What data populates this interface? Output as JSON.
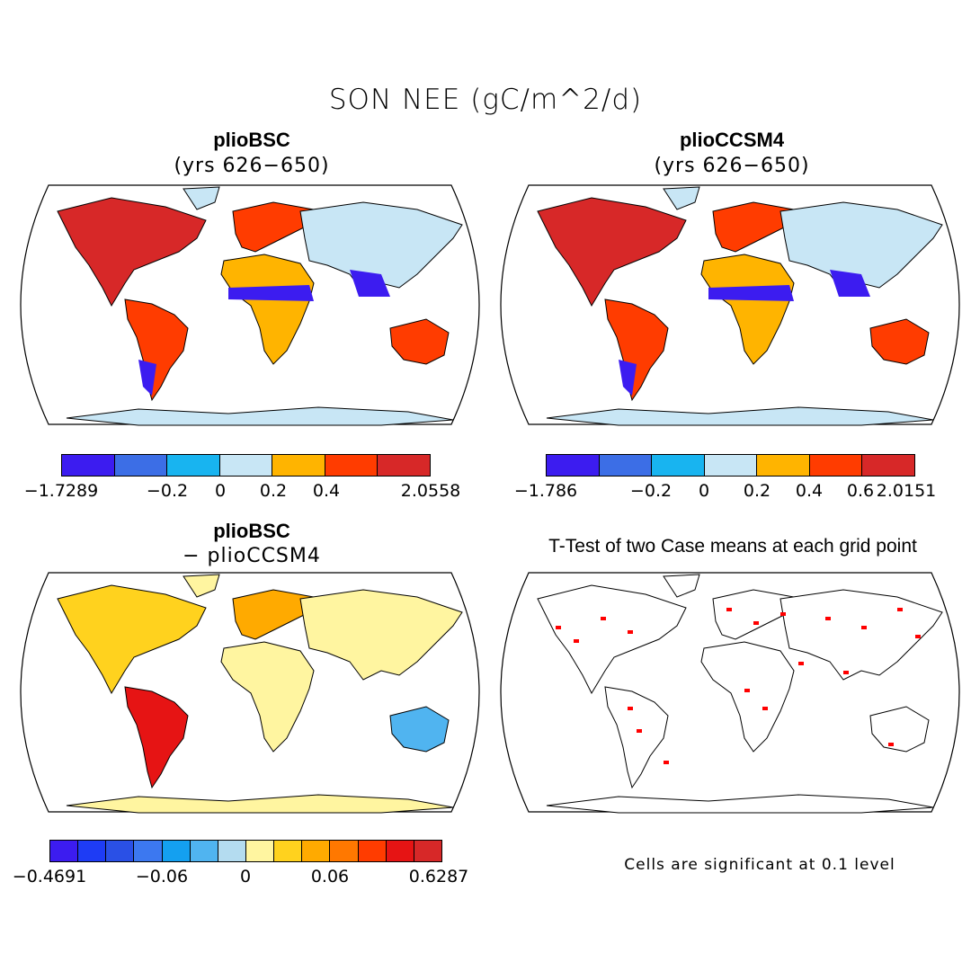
{
  "title": "SON NEE (gC/m^2/d)",
  "panels": [
    {
      "id": "p1",
      "title": "plioBSC",
      "subtitle": "(yrs 626−650)",
      "colorbar": {
        "colors": [
          "#3c1cf0",
          "#3c6ee6",
          "#18b4f0",
          "#c8e6f5",
          "#ffb400",
          "#ff3c00",
          "#d72828"
        ],
        "ticks": [
          "−1.7289",
          "−0.2",
          "0",
          "0.2",
          "0.4",
          "2.0558"
        ]
      }
    },
    {
      "id": "p2",
      "title": "plioCCSM4",
      "subtitle": "(yrs 626−650)",
      "colorbar": {
        "colors": [
          "#3c1cf0",
          "#3c6ee6",
          "#18b4f0",
          "#c8e6f5",
          "#ffb400",
          "#ff3c00",
          "#d72828"
        ],
        "ticks": [
          "−1.786",
          "−0.2",
          "0",
          "0.2",
          "0.4",
          "0.6",
          "2.0151"
        ]
      }
    },
    {
      "id": "p3",
      "title": "plioBSC",
      "subtitle": "− plioCCSM4",
      "colorbar": {
        "colors": [
          "#3c1cf0",
          "#1e3cf5",
          "#2a50e6",
          "#3c78f0",
          "#14a0f0",
          "#50b4f0",
          "#b4dcf0",
          "#fff5a0",
          "#ffd21e",
          "#ffaa00",
          "#ff7800",
          "#ff3c00",
          "#e61414",
          "#d72828"
        ],
        "ticks": [
          "−0.4691",
          "−0.06",
          "0",
          "0.06",
          "0.6287"
        ]
      }
    },
    {
      "id": "p4",
      "title": "T-Test of two Case means at each grid point",
      "note": "Cells are significant at 0.1 level"
    }
  ]
}
